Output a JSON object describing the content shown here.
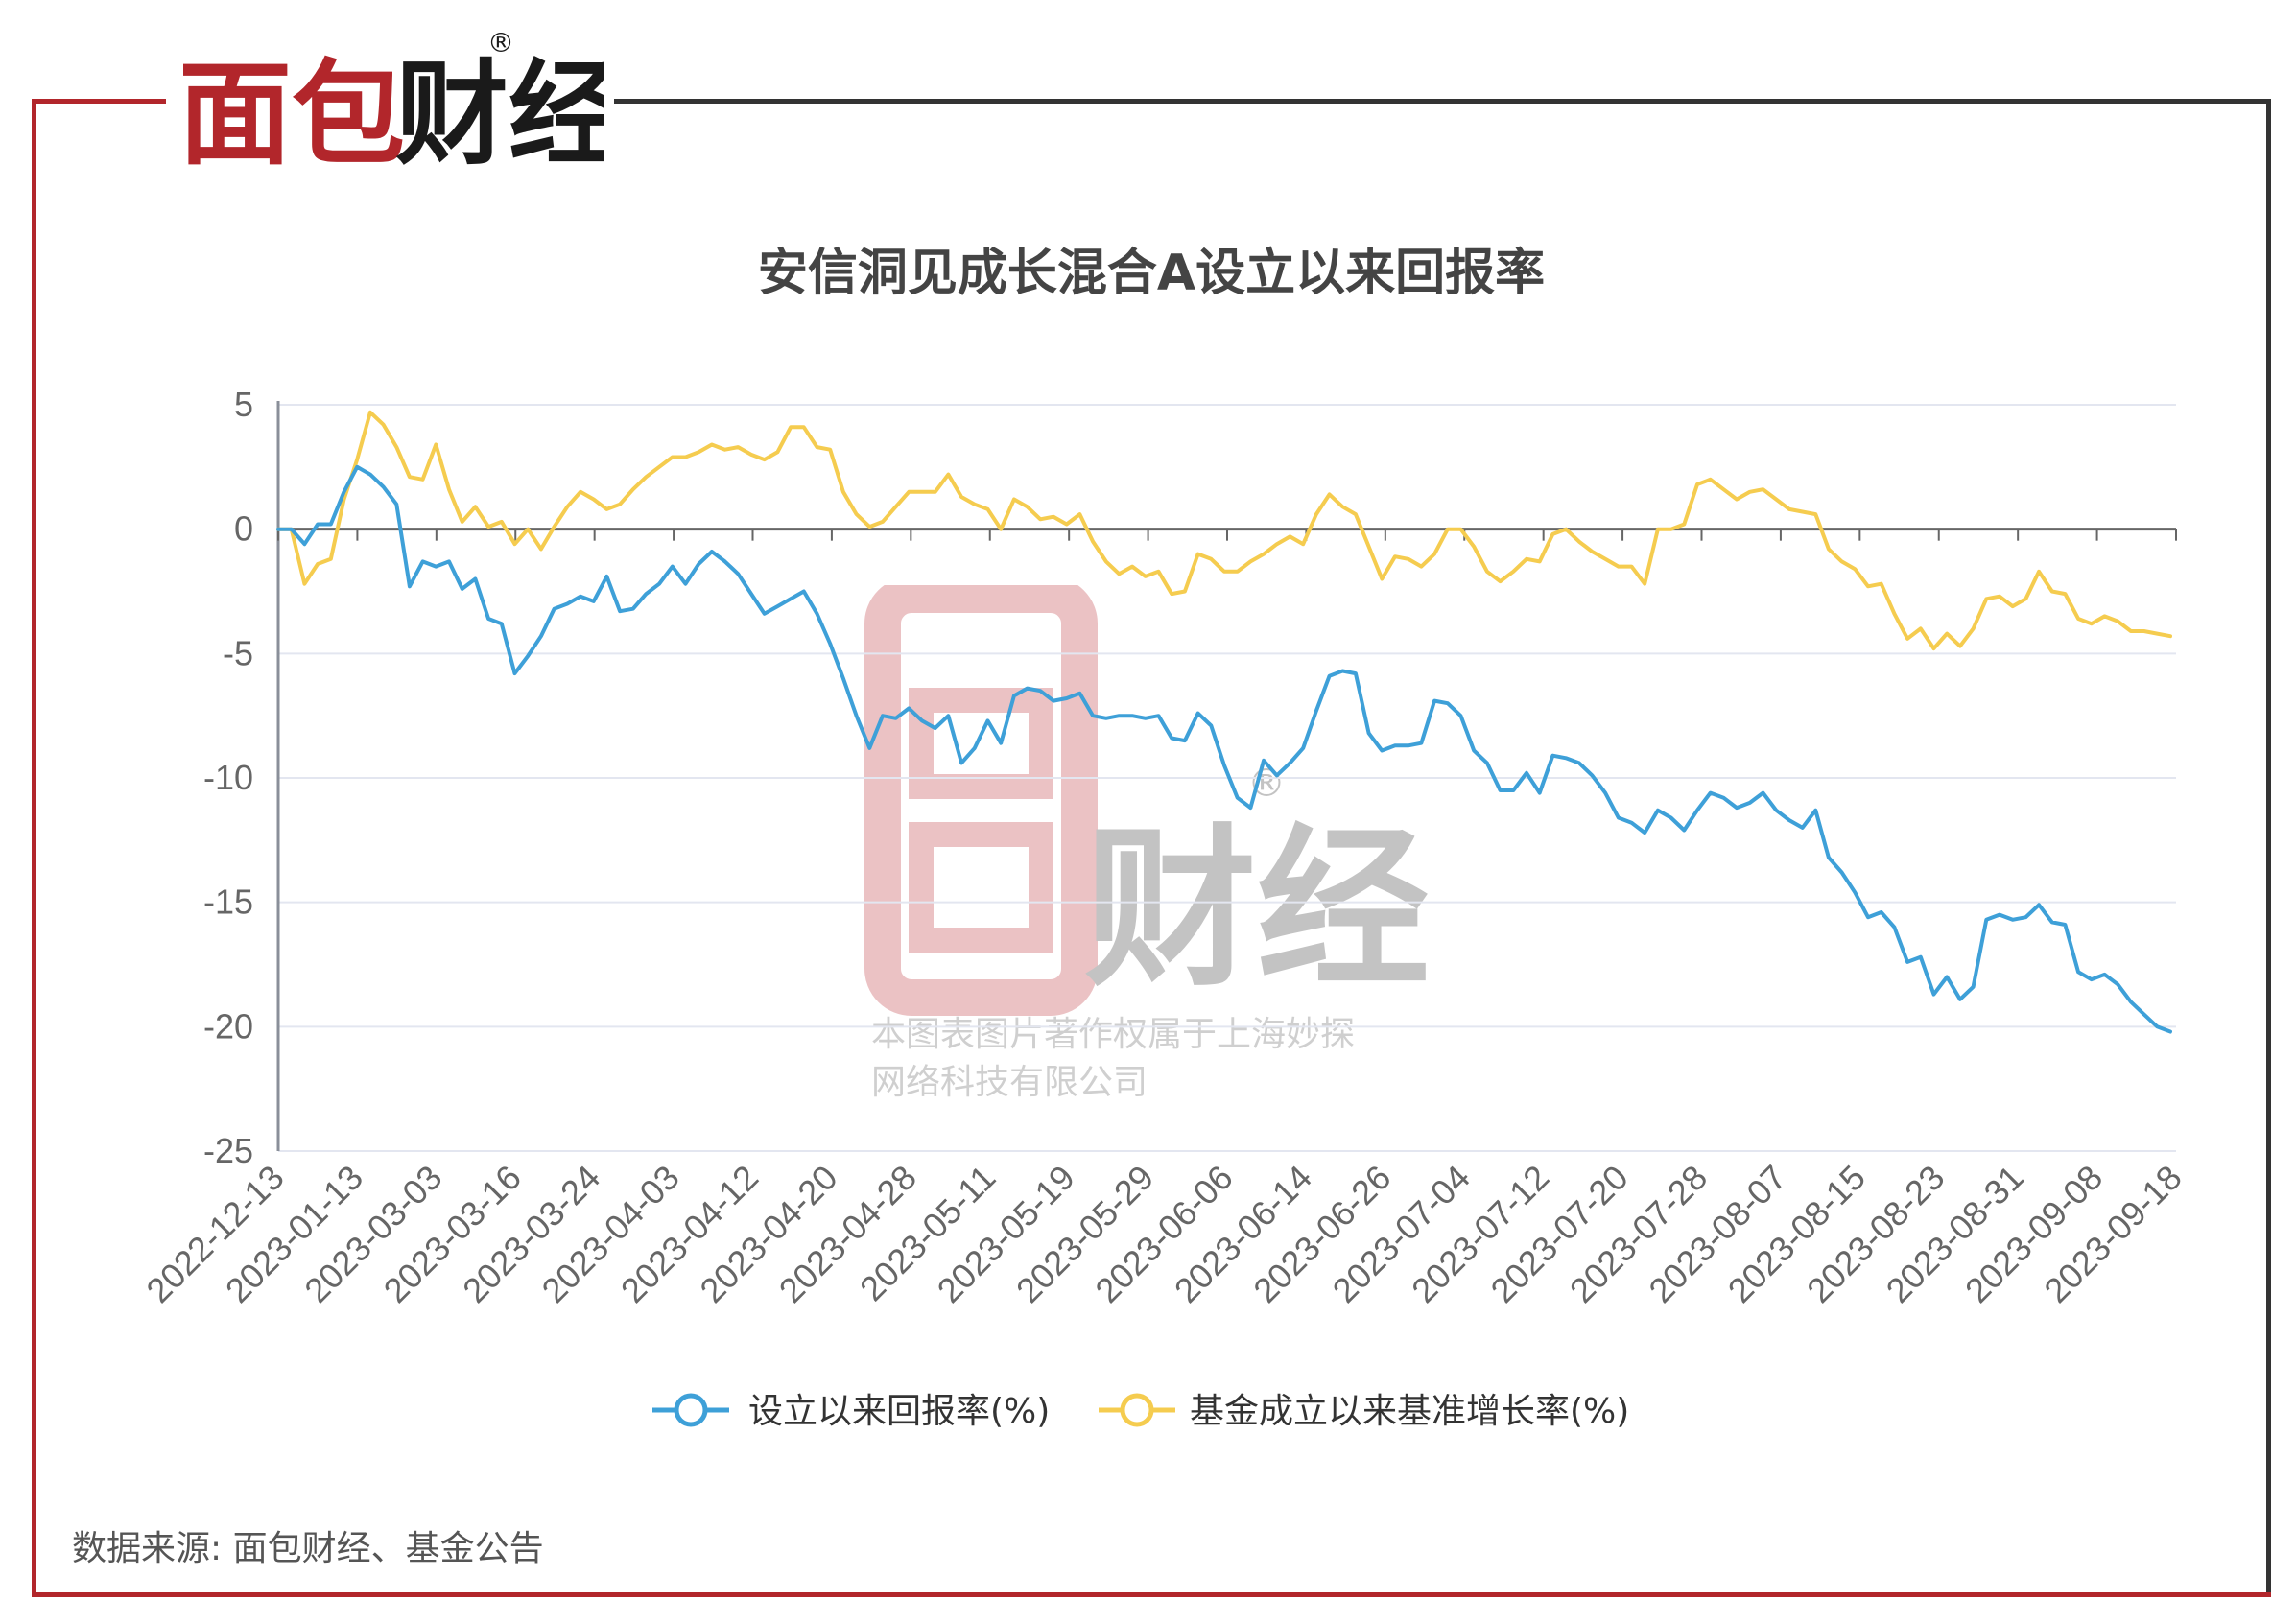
{
  "brand": {
    "name": "面包财经",
    "registered_mark": "®",
    "accent_color": "#b2262b"
  },
  "watermark": {
    "line1": "本图表图片著作权属于上海妙探",
    "line2": "网络科技有限公司"
  },
  "source": "数据来源: 面包财经、基金公告",
  "chart_data": {
    "type": "line",
    "title": "安信洞见成长混合A设立以来回报率",
    "xlabel": "",
    "ylabel": "",
    "ylim": [
      -25,
      5
    ],
    "yticks": [
      "5",
      "0",
      "-5",
      "-10",
      "-15",
      "-20",
      "-25"
    ],
    "x_tick_labels": [
      "2022-12-13",
      "2023-01-13",
      "2023-03-03",
      "2023-03-16",
      "2023-03-24",
      "2023-04-03",
      "2023-04-12",
      "2023-04-20",
      "2023-04-28",
      "2023-05-11",
      "2023-05-19",
      "2023-05-29",
      "2023-06-06",
      "2023-06-14",
      "2023-06-26",
      "2023-07-04",
      "2023-07-12",
      "2023-07-20",
      "2023-07-28",
      "2023-08-07",
      "2023-08-15",
      "2023-08-23",
      "2023-08-31",
      "2023-09-08",
      "2023-09-18"
    ],
    "grid": true,
    "legend_placement": "bottom",
    "series": [
      {
        "name": "设立以来回报率(%)",
        "color": "#3ea0d8",
        "values": [
          0,
          0,
          -0.6,
          0.2,
          0.2,
          1.5,
          2.5,
          2.2,
          1.7,
          1.0,
          -2.3,
          -1.3,
          -1.5,
          -1.3,
          -2.4,
          -2.0,
          -3.6,
          -3.8,
          -5.8,
          -5.1,
          -4.3,
          -3.2,
          -3.0,
          -2.7,
          -2.9,
          -1.9,
          -3.3,
          -3.2,
          -2.6,
          -2.2,
          -1.5,
          -2.2,
          -1.4,
          -0.9,
          -1.3,
          -1.8,
          -2.6,
          -3.4,
          -3.1,
          -2.8,
          -2.5,
          -3.4,
          -4.6,
          -6.0,
          -7.5,
          -8.8,
          -7.5,
          -7.6,
          -7.2,
          -7.7,
          -8.0,
          -7.5,
          -9.4,
          -8.8,
          -7.7,
          -8.6,
          -6.7,
          -6.4,
          -6.5,
          -6.9,
          -6.8,
          -6.6,
          -7.5,
          -7.6,
          -7.5,
          -7.5,
          -7.6,
          -7.5,
          -8.4,
          -8.5,
          -7.4,
          -7.9,
          -9.5,
          -10.8,
          -11.2,
          -9.3,
          -9.9,
          -9.4,
          -8.8,
          -7.3,
          -5.9,
          -5.7,
          -5.8,
          -8.2,
          -8.9,
          -8.7,
          -8.7,
          -8.6,
          -6.9,
          -7.0,
          -7.5,
          -8.9,
          -9.4,
          -10.5,
          -10.5,
          -9.8,
          -10.6,
          -9.1,
          -9.2,
          -9.4,
          -9.9,
          -10.6,
          -11.6,
          -11.8,
          -12.2,
          -11.3,
          -11.6,
          -12.1,
          -11.3,
          -10.6,
          -10.8,
          -11.2,
          -11.0,
          -10.6,
          -11.3,
          -11.7,
          -12.0,
          -11.3,
          -13.2,
          -13.8,
          -14.6,
          -15.6,
          -15.4,
          -16.0,
          -17.4,
          -17.2,
          -18.7,
          -18.0,
          -18.9,
          -18.4,
          -15.7,
          -15.5,
          -15.7,
          -15.6,
          -15.1,
          -15.8,
          -15.9,
          -17.8,
          -18.1,
          -17.9,
          -18.3,
          -19.0,
          -19.5,
          -20.0,
          -20.2
        ]
      },
      {
        "name": "基金成立以来基准增长率(%)",
        "color": "#f5cc4f",
        "values": [
          0,
          0,
          -2.2,
          -1.4,
          -1.2,
          1.2,
          2.8,
          4.7,
          4.2,
          3.3,
          2.1,
          2.0,
          3.4,
          1.6,
          0.3,
          0.9,
          0.1,
          0.3,
          -0.6,
          0.0,
          -0.8,
          0.1,
          0.9,
          1.5,
          1.2,
          0.8,
          1.0,
          1.6,
          2.1,
          2.5,
          2.9,
          2.9,
          3.1,
          3.4,
          3.2,
          3.3,
          3.0,
          2.8,
          3.1,
          4.1,
          4.1,
          3.3,
          3.2,
          1.5,
          0.6,
          0.1,
          0.3,
          0.9,
          1.5,
          1.5,
          1.5,
          2.2,
          1.3,
          1.0,
          0.8,
          0.0,
          1.2,
          0.9,
          0.4,
          0.5,
          0.2,
          0.6,
          -0.5,
          -1.3,
          -1.8,
          -1.5,
          -1.9,
          -1.7,
          -2.6,
          -2.5,
          -1.0,
          -1.2,
          -1.7,
          -1.7,
          -1.3,
          -1.0,
          -0.6,
          -0.3,
          -0.6,
          0.6,
          1.4,
          0.9,
          0.6,
          -0.7,
          -2.0,
          -1.1,
          -1.2,
          -1.5,
          -1.0,
          0.0,
          0.0,
          -0.7,
          -1.7,
          -2.1,
          -1.7,
          -1.2,
          -1.3,
          -0.2,
          0.0,
          -0.5,
          -0.9,
          -1.2,
          -1.5,
          -1.5,
          -2.2,
          0.0,
          0.0,
          0.2,
          1.8,
          2.0,
          1.6,
          1.2,
          1.5,
          1.6,
          1.2,
          0.8,
          0.7,
          0.6,
          -0.8,
          -1.3,
          -1.6,
          -2.3,
          -2.2,
          -3.4,
          -4.4,
          -4.0,
          -4.8,
          -4.2,
          -4.7,
          -4.0,
          -2.8,
          -2.7,
          -3.1,
          -2.8,
          -1.7,
          -2.5,
          -2.6,
          -3.6,
          -3.8,
          -3.5,
          -3.7,
          -4.1,
          -4.1,
          -4.2,
          -4.3
        ]
      }
    ]
  }
}
